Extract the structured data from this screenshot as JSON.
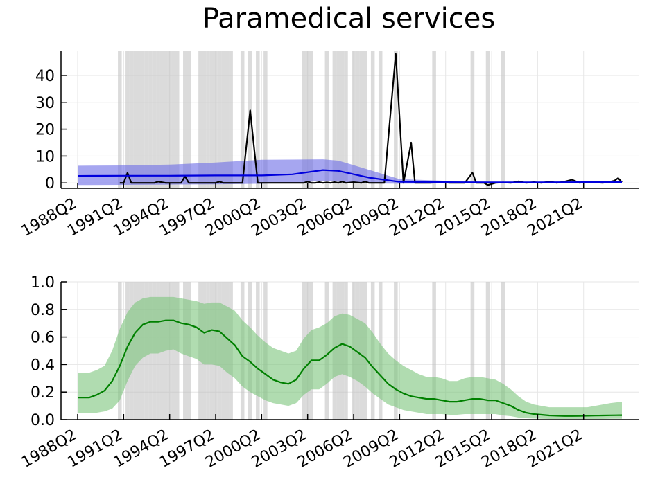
{
  "chart_data": {
    "title": "Paramedical services",
    "type": "line",
    "x_tick_labels": [
      "1988Q2",
      "1991Q2",
      "1994Q2",
      "1997Q2",
      "2000Q2",
      "2003Q2",
      "2006Q2",
      "2009Q2",
      "2012Q2",
      "2015Q2",
      "2018Q2",
      "2021Q2"
    ],
    "x_range": [
      "1988Q2",
      "2023Q4"
    ],
    "grid": true,
    "legend": "none",
    "shaded_periods": [
      "1991Q1",
      "1991Q3",
      "1991Q4",
      "1992Q1",
      "1992Q2",
      "1992Q3",
      "1992Q4",
      "1993Q1",
      "1993Q2",
      "1993Q3",
      "1993Q4",
      "1994Q1",
      "1994Q2",
      "1994Q3",
      "1994Q4",
      "1995Q2",
      "1995Q3",
      "1996Q2",
      "1996Q3",
      "1996Q4",
      "1997Q1",
      "1997Q2",
      "1997Q3",
      "1997Q4",
      "1998Q1",
      "1998Q2",
      "1999Q1",
      "1999Q3",
      "2000Q1",
      "2000Q3",
      "2003Q1",
      "2003Q2",
      "2003Q3",
      "2004Q3",
      "2005Q1",
      "2005Q2",
      "2005Q3",
      "2005Q4",
      "2006Q2",
      "2006Q3",
      "2006Q4",
      "2007Q1",
      "2007Q3",
      "2008Q1",
      "2009Q1",
      "2011Q3",
      "2014Q1",
      "2015Q1",
      "2016Q1"
    ],
    "panels": [
      {
        "name": "upper",
        "ylim": [
          -2,
          49
        ],
        "y_ticks": [
          0,
          10,
          20,
          30,
          40
        ],
        "series": [
          {
            "role": "observed",
            "color": "#000000",
            "x": [
              "1991Q1",
              "1991Q2",
              "1991Q3",
              "1991Q4",
              "1992Q1",
              "1992Q3",
              "1993Q1",
              "1993Q2",
              "1993Q3",
              "1994Q1",
              "1994Q3",
              "1995Q1",
              "1995Q2",
              "1995Q3",
              "1996Q1",
              "1996Q3",
              "1997Q1",
              "1997Q2",
              "1997Q3",
              "1997Q4",
              "1998Q2",
              "1999Q1",
              "1999Q3",
              "2000Q1",
              "2000Q3",
              "2001Q1",
              "2001Q3",
              "2002Q1",
              "2002Q3",
              "2003Q1",
              "2003Q2",
              "2003Q3",
              "2003Q4",
              "2004Q1",
              "2004Q2",
              "2004Q3",
              "2004Q4",
              "2005Q1",
              "2005Q2",
              "2005Q3",
              "2005Q4",
              "2006Q2",
              "2006Q4",
              "2007Q1",
              "2007Q2",
              "2007Q3",
              "2007Q4",
              "2008Q2",
              "2009Q1",
              "2009Q3",
              "2010Q1",
              "2010Q2",
              "2010Q4",
              "2011Q2",
              "2012Q1",
              "2012Q3",
              "2013Q1",
              "2013Q3",
              "2014Q1",
              "2014Q2",
              "2014Q3",
              "2014Q4",
              "2015Q1",
              "2015Q3",
              "2016Q1",
              "2016Q3",
              "2017Q1",
              "2017Q3",
              "2018Q1",
              "2018Q3",
              "2019Q1",
              "2019Q2",
              "2019Q3",
              "2020Q1",
              "2020Q3",
              "2021Q1",
              "2021Q3",
              "2022Q1",
              "2022Q3",
              "2023Q1",
              "2023Q2",
              "2023Q3",
              "2023Q4"
            ],
            "values": [
              0,
              0,
              3.8,
              0,
              0,
              0,
              0,
              0,
              0.5,
              0,
              0,
              0,
              2.5,
              0,
              0,
              0,
              0,
              0,
              0.5,
              0,
              0,
              0,
              27,
              0,
              0,
              0,
              0,
              0,
              0,
              0,
              0.5,
              0,
              0,
              0.3,
              0,
              0.2,
              0,
              0.3,
              0,
              0.5,
              0,
              0.3,
              0,
              0.5,
              0,
              0,
              0,
              0,
              48,
              0,
              15,
              0,
              0,
              0,
              0.3,
              0,
              0,
              0,
              3.8,
              0,
              0,
              0,
              -0.8,
              0,
              0.2,
              0,
              0.6,
              0,
              0.3,
              0,
              0.5,
              0.3,
              0,
              0.5,
              1.2,
              0,
              0.5,
              0.2,
              0,
              0.5,
              0.8,
              1.8,
              0.3
            ]
          },
          {
            "role": "trend",
            "color": "#0000dd",
            "x": [
              "1988Q2",
              "1991Q2",
              "1994Q2",
              "1997Q2",
              "2000Q2",
              "2002Q2",
              "2004Q2",
              "2005Q2",
              "2007Q2",
              "2009Q2",
              "2012Q2",
              "2015Q2",
              "2018Q2",
              "2021Q2",
              "2023Q4"
            ],
            "values": [
              2.6,
              2.7,
              2.7,
              2.8,
              2.8,
              3.2,
              4.8,
              4.5,
              2,
              0.4,
              0.3,
              0.2,
              0.2,
              0.3,
              0.3
            ],
            "band_color": "#6a6ae6",
            "lower": [
              -0.8,
              -0.7,
              -0.6,
              -0.5,
              -0.3,
              0,
              0.8,
              0.5,
              -0.2,
              -0.3,
              -0.2,
              -0.2,
              -0.1,
              -0.1,
              -0.1
            ],
            "upper": [
              6.4,
              6.5,
              6.8,
              7.6,
              8.6,
              8.7,
              8.8,
              8.3,
              4.9,
              1.4,
              0.8,
              0.6,
              0.6,
              0.7,
              0.7
            ]
          }
        ]
      },
      {
        "name": "lower",
        "ylim": [
          0,
          1
        ],
        "y_ticks": [
          0.0,
          0.2,
          0.4,
          0.6,
          0.8,
          1.0
        ],
        "y_tick_labels": [
          "0.0",
          "0.2",
          "0.4",
          "0.6",
          "0.8",
          "1.0"
        ],
        "series": [
          {
            "role": "probability",
            "color": "#008000",
            "band_color": "#7cc47c",
            "x": [
              "1988Q2",
              "1989Q1",
              "1989Q3",
              "1990Q1",
              "1990Q3",
              "1991Q1",
              "1991Q3",
              "1992Q1",
              "1992Q3",
              "1993Q1",
              "1993Q3",
              "1994Q1",
              "1994Q3",
              "1995Q1",
              "1995Q3",
              "1996Q1",
              "1996Q3",
              "1997Q1",
              "1997Q3",
              "1998Q1",
              "1998Q3",
              "1999Q1",
              "1999Q3",
              "2000Q1",
              "2000Q3",
              "2001Q1",
              "2001Q3",
              "2002Q1",
              "2002Q3",
              "2003Q1",
              "2003Q3",
              "2004Q1",
              "2004Q3",
              "2005Q1",
              "2005Q3",
              "2006Q1",
              "2006Q3",
              "2007Q1",
              "2007Q3",
              "2008Q1",
              "2008Q3",
              "2009Q1",
              "2009Q3",
              "2010Q1",
              "2010Q3",
              "2011Q1",
              "2011Q3",
              "2012Q1",
              "2012Q3",
              "2013Q1",
              "2013Q3",
              "2014Q1",
              "2014Q3",
              "2015Q1",
              "2015Q3",
              "2016Q1",
              "2016Q3",
              "2017Q1",
              "2017Q3",
              "2018Q1",
              "2018Q3",
              "2019Q1",
              "2019Q3",
              "2020Q1",
              "2020Q3",
              "2021Q1",
              "2021Q3",
              "2022Q1",
              "2022Q3",
              "2023Q1",
              "2023Q4"
            ],
            "values": [
              0.16,
              0.16,
              0.18,
              0.21,
              0.28,
              0.39,
              0.53,
              0.63,
              0.69,
              0.71,
              0.71,
              0.72,
              0.72,
              0.7,
              0.69,
              0.67,
              0.63,
              0.65,
              0.64,
              0.59,
              0.54,
              0.46,
              0.42,
              0.37,
              0.33,
              0.29,
              0.27,
              0.26,
              0.29,
              0.37,
              0.43,
              0.43,
              0.47,
              0.52,
              0.55,
              0.53,
              0.49,
              0.45,
              0.38,
              0.32,
              0.26,
              0.22,
              0.19,
              0.17,
              0.16,
              0.15,
              0.15,
              0.14,
              0.13,
              0.13,
              0.14,
              0.15,
              0.15,
              0.14,
              0.14,
              0.12,
              0.1,
              0.07,
              0.05,
              0.04,
              0.035,
              0.03,
              0.028,
              0.026,
              0.026,
              0.027,
              0.028,
              0.029,
              0.03,
              0.031,
              0.032
            ],
            "lower": [
              0.05,
              0.05,
              0.05,
              0.06,
              0.08,
              0.14,
              0.28,
              0.39,
              0.45,
              0.48,
              0.48,
              0.5,
              0.51,
              0.48,
              0.46,
              0.44,
              0.4,
              0.4,
              0.39,
              0.34,
              0.3,
              0.24,
              0.2,
              0.17,
              0.14,
              0.12,
              0.11,
              0.1,
              0.12,
              0.18,
              0.22,
              0.22,
              0.26,
              0.31,
              0.33,
              0.31,
              0.28,
              0.24,
              0.19,
              0.15,
              0.11,
              0.09,
              0.07,
              0.06,
              0.05,
              0.04,
              0.04,
              0.04,
              0.035,
              0.035,
              0.04,
              0.04,
              0.04,
              0.04,
              0.04,
              0.03,
              0.025,
              0.015,
              0.01,
              0.008,
              0.006,
              0.005,
              0.005,
              0.005,
              0.005,
              0.005,
              0.005,
              0.005,
              0.005,
              0.006,
              0.006
            ],
            "upper": [
              0.34,
              0.34,
              0.36,
              0.39,
              0.5,
              0.66,
              0.78,
              0.85,
              0.88,
              0.89,
              0.89,
              0.89,
              0.89,
              0.88,
              0.87,
              0.86,
              0.84,
              0.85,
              0.85,
              0.82,
              0.79,
              0.72,
              0.67,
              0.61,
              0.56,
              0.52,
              0.5,
              0.48,
              0.5,
              0.59,
              0.65,
              0.67,
              0.7,
              0.75,
              0.77,
              0.76,
              0.73,
              0.7,
              0.63,
              0.55,
              0.48,
              0.43,
              0.39,
              0.36,
              0.33,
              0.31,
              0.31,
              0.3,
              0.28,
              0.28,
              0.3,
              0.31,
              0.31,
              0.3,
              0.29,
              0.26,
              0.22,
              0.17,
              0.13,
              0.11,
              0.1,
              0.09,
              0.09,
              0.09,
              0.09,
              0.09,
              0.09,
              0.1,
              0.11,
              0.12,
              0.13
            ]
          }
        ]
      }
    ]
  }
}
